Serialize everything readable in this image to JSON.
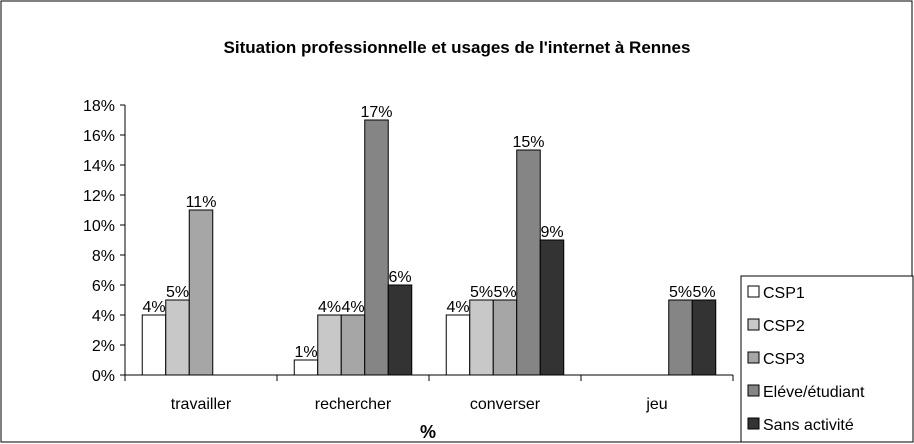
{
  "chart_data": {
    "type": "bar",
    "title": "Situation professionnelle et usages de l'internet à Rennes",
    "x_label": "%",
    "categories": [
      "travailler",
      "rechercher",
      "converser",
      "jeu"
    ],
    "series": [
      {
        "name": "CSP1",
        "color": "#ffffff",
        "values": [
          4,
          1,
          4,
          null
        ],
        "value_labels": [
          "4%",
          "1%",
          "4%",
          null
        ]
      },
      {
        "name": "CSP2",
        "color": "#c8c8c8",
        "values": [
          5,
          4,
          5,
          null
        ],
        "value_labels": [
          "5%",
          "4%",
          "5%",
          null
        ]
      },
      {
        "name": "CSP3",
        "color": "#a6a6a6",
        "values": [
          11,
          4,
          5,
          null
        ],
        "value_labels": [
          "11%",
          "4%",
          "5%",
          null
        ]
      },
      {
        "name": "Eléve/étudiant",
        "color": "#858585",
        "values": [
          null,
          17,
          15,
          5
        ],
        "value_labels": [
          null,
          "17%",
          "15%",
          "5%"
        ]
      },
      {
        "name": "Sans activité",
        "color": "#333333",
        "values": [
          null,
          6,
          9,
          5
        ],
        "value_labels": [
          null,
          "6%",
          "9%",
          "5%"
        ]
      }
    ],
    "ylim": [
      0,
      18
    ],
    "yticks": [
      {
        "value": 0,
        "label": "0%"
      },
      {
        "value": 2,
        "label": "2%"
      },
      {
        "value": 4,
        "label": "4%"
      },
      {
        "value": 6,
        "label": "6%"
      },
      {
        "value": 8,
        "label": "8%"
      },
      {
        "value": 10,
        "label": "10%"
      },
      {
        "value": 12,
        "label": "12%"
      },
      {
        "value": 14,
        "label": "14%"
      },
      {
        "value": 16,
        "label": "16%"
      },
      {
        "value": 18,
        "label": "18%"
      }
    ],
    "grid": false,
    "legend": "right"
  }
}
